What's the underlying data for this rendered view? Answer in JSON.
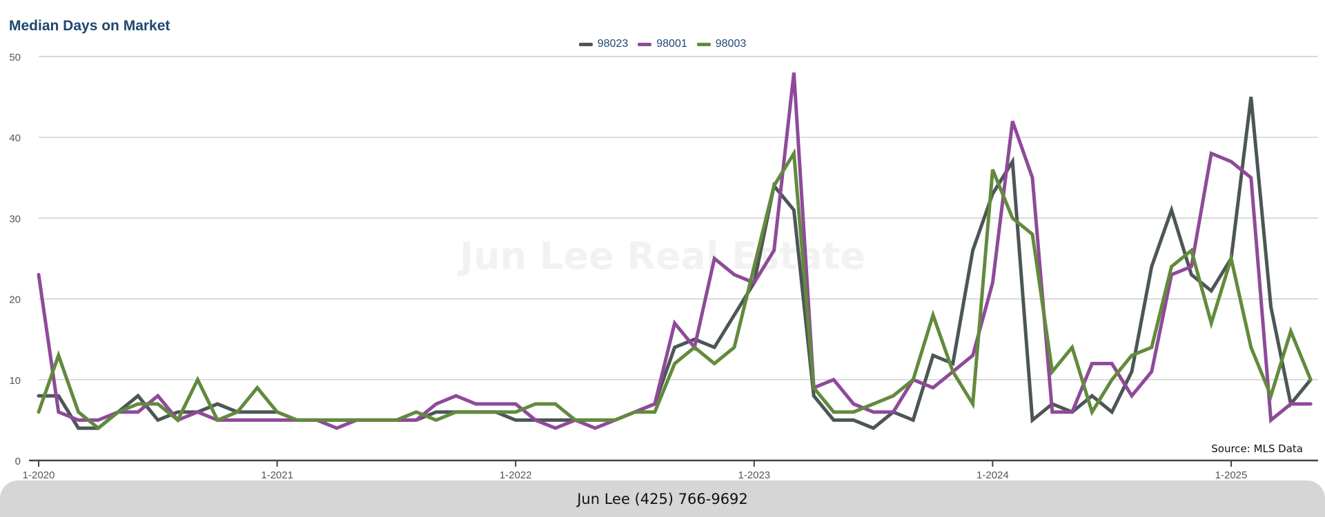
{
  "footer": {
    "contact": "Jun Lee (425) 766-9692"
  },
  "chart_data": {
    "type": "line",
    "title": "Median Days on Market",
    "watermark": "Jun Lee Real Estate",
    "source": "Source: MLS Data",
    "xlabel": "",
    "ylabel": "",
    "ylim": [
      0,
      50
    ],
    "yticks": [
      0,
      10,
      20,
      30,
      40,
      50
    ],
    "grid": true,
    "legend_position": "top-center",
    "x": [
      "1-2020",
      "2-2020",
      "3-2020",
      "4-2020",
      "5-2020",
      "6-2020",
      "7-2020",
      "8-2020",
      "9-2020",
      "10-2020",
      "11-2020",
      "12-2020",
      "1-2021",
      "2-2021",
      "3-2021",
      "4-2021",
      "5-2021",
      "6-2021",
      "7-2021",
      "8-2021",
      "9-2021",
      "10-2021",
      "11-2021",
      "12-2021",
      "1-2022",
      "2-2022",
      "3-2022",
      "4-2022",
      "5-2022",
      "6-2022",
      "7-2022",
      "8-2022",
      "9-2022",
      "10-2022",
      "11-2022",
      "12-2022",
      "1-2023",
      "2-2023",
      "3-2023",
      "4-2023",
      "5-2023",
      "6-2023",
      "7-2023",
      "8-2023",
      "9-2023",
      "10-2023",
      "11-2023",
      "12-2023",
      "1-2024",
      "2-2024",
      "3-2024",
      "4-2024",
      "5-2024",
      "6-2024",
      "7-2024",
      "8-2024",
      "9-2024",
      "10-2024",
      "11-2024",
      "12-2024",
      "1-2025",
      "2-2025",
      "3-2025",
      "4-2025",
      "5-2025"
    ],
    "x_tick_labels": [
      "1-2020",
      "1-2021",
      "1-2022",
      "1-2023",
      "1-2024",
      "1-2025"
    ],
    "series": [
      {
        "name": "98023",
        "color": "#4d5656",
        "values": [
          8,
          8,
          4,
          4,
          6,
          8,
          5,
          6,
          6,
          7,
          6,
          6,
          6,
          5,
          5,
          5,
          5,
          5,
          5,
          5,
          6,
          6,
          6,
          6,
          5,
          5,
          5,
          5,
          5,
          5,
          6,
          7,
          14,
          15,
          14,
          18,
          22,
          34,
          31,
          8,
          5,
          5,
          4,
          6,
          5,
          13,
          12,
          26,
          33,
          37,
          5,
          7,
          6,
          8,
          6,
          11,
          24,
          31,
          23,
          21,
          25,
          45,
          19,
          7,
          10
        ]
      },
      {
        "name": "98001",
        "color": "#8e4a99",
        "values": [
          23,
          6,
          5,
          5,
          6,
          6,
          8,
          5,
          6,
          5,
          5,
          5,
          5,
          5,
          5,
          4,
          5,
          5,
          5,
          5,
          7,
          8,
          7,
          7,
          7,
          5,
          4,
          5,
          4,
          5,
          6,
          7,
          17,
          14,
          25,
          23,
          22,
          26,
          48,
          9,
          10,
          7,
          6,
          6,
          10,
          9,
          11,
          13,
          22,
          42,
          35,
          6,
          6,
          12,
          12,
          8,
          11,
          23,
          24,
          38,
          37,
          35,
          5,
          7,
          7
        ]
      },
      {
        "name": "98003",
        "color": "#628a3d",
        "values": [
          6,
          13,
          6,
          4,
          6,
          7,
          7,
          5,
          10,
          5,
          6,
          9,
          6,
          5,
          5,
          5,
          5,
          5,
          5,
          6,
          5,
          6,
          6,
          6,
          6,
          7,
          7,
          5,
          5,
          5,
          6,
          6,
          12,
          14,
          12,
          14,
          24,
          34,
          38,
          9,
          6,
          6,
          7,
          8,
          10,
          18,
          11,
          7,
          36,
          30,
          28,
          11,
          14,
          6,
          10,
          13,
          14,
          24,
          26,
          17,
          25,
          14,
          8,
          16,
          10
        ]
      }
    ]
  }
}
